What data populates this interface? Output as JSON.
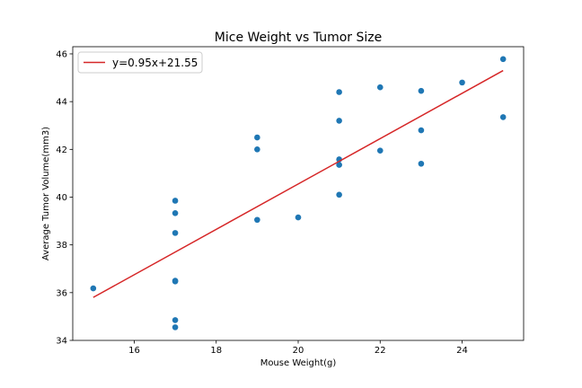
{
  "chart_data": {
    "type": "scatter",
    "title": "Mice Weight vs Tumor Size",
    "xlabel": "Mouse Weight(g)",
    "ylabel": "Average Tumor Volume(mm3)",
    "xlim": [
      14.5,
      25.5
    ],
    "ylim": [
      34,
      46.3
    ],
    "xticks": [
      16,
      18,
      20,
      22,
      24
    ],
    "yticks": [
      34,
      36,
      38,
      40,
      42,
      44,
      46
    ],
    "grid": false,
    "legend_position": "top-left",
    "points": {
      "color": "#1f77b4",
      "x": [
        15,
        17,
        17,
        17,
        17,
        17,
        17,
        17,
        19,
        19,
        19,
        20,
        21,
        21,
        21,
        21,
        21,
        22,
        22,
        23,
        23,
        23,
        24,
        25,
        25
      ],
      "y": [
        36.18,
        39.85,
        39.33,
        38.5,
        36.5,
        36.47,
        34.85,
        34.55,
        42.5,
        42.0,
        39.05,
        39.15,
        44.4,
        43.2,
        41.58,
        41.35,
        40.1,
        44.6,
        41.95,
        44.45,
        42.8,
        41.4,
        44.8,
        45.78,
        43.35
      ]
    },
    "regression": {
      "label": "y=0.95x+21.55",
      "color": "#d62728",
      "slope": 0.95,
      "intercept": 21.55,
      "x_range": [
        15,
        25
      ]
    }
  }
}
